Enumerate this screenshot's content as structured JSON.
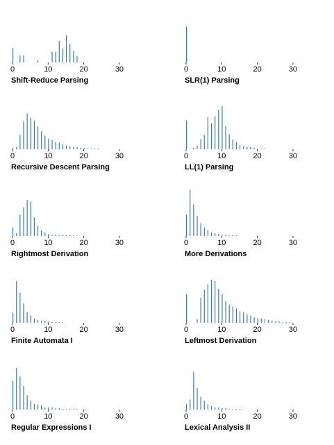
{
  "page": {
    "background": "#ffffff",
    "bar_color": "#3a7dae",
    "axis_color": "#000000"
  },
  "chart_data": [
    {
      "type": "bar",
      "title": "Shift-Reduce Parsing",
      "xlim": [
        0,
        38
      ],
      "ymax": 58,
      "xticks": [
        "0",
        "10",
        "20",
        "30"
      ],
      "values": [
        20,
        0,
        10,
        10,
        0,
        0,
        0,
        3,
        0,
        0,
        0,
        15,
        15,
        30,
        19,
        38,
        26,
        16,
        9,
        0,
        0,
        0,
        0,
        0,
        0,
        0,
        0,
        0,
        0,
        0,
        0,
        0,
        0,
        0,
        0,
        0,
        0
      ]
    },
    {
      "type": "bar",
      "title": "SLR(1) Parsing",
      "xlim": [
        0,
        38
      ],
      "ymax": 58,
      "xticks": [
        "0",
        "10",
        "20",
        "30"
      ],
      "values": [
        50,
        0,
        0,
        0,
        0,
        0,
        0,
        0,
        0,
        0,
        0,
        0,
        0,
        0,
        0,
        0,
        0,
        0,
        0,
        0,
        0,
        0,
        0,
        0,
        0,
        0,
        0,
        0,
        0,
        0,
        0,
        0,
        0,
        0,
        0,
        0,
        0
      ]
    },
    {
      "type": "bar",
      "title": "Recursive Descent Parsing",
      "xlim": [
        0,
        38
      ],
      "ymax": 58,
      "xticks": [
        "0",
        "10",
        "20",
        "30"
      ],
      "values": [
        2,
        3,
        20,
        39,
        50,
        44,
        40,
        32,
        25,
        19,
        15,
        13,
        10,
        9,
        7,
        5,
        4,
        3,
        3,
        2,
        2,
        1,
        1,
        1,
        1,
        0,
        0,
        0,
        0,
        0,
        0,
        0,
        0,
        0,
        0,
        0,
        0
      ]
    },
    {
      "type": "bar",
      "title": "LL(1) Parsing",
      "xlim": [
        0,
        38
      ],
      "ymax": 58,
      "xticks": [
        "0",
        "10",
        "20",
        "30"
      ],
      "values": [
        40,
        0,
        2,
        5,
        14,
        20,
        45,
        36,
        46,
        55,
        60,
        32,
        21,
        14,
        10,
        6,
        4,
        3,
        3,
        2,
        1,
        1,
        1,
        0,
        0,
        0,
        0,
        0,
        0,
        0,
        0,
        0,
        0,
        0,
        0,
        0,
        0
      ]
    },
    {
      "type": "bar",
      "title": "Rightmost Derivation",
      "xlim": [
        0,
        38
      ],
      "ymax": 58,
      "xticks": [
        "0",
        "10",
        "20",
        "30"
      ],
      "values": [
        12,
        4,
        30,
        40,
        50,
        48,
        26,
        14,
        8,
        5,
        3,
        2,
        2,
        1,
        1,
        1,
        1,
        1,
        1,
        0,
        0,
        0,
        0,
        0,
        0,
        0,
        0,
        0,
        0,
        0,
        0,
        0,
        0,
        0,
        0,
        0,
        0
      ]
    },
    {
      "type": "bar",
      "title": "More Derivations",
      "xlim": [
        0,
        38
      ],
      "ymax": 58,
      "xticks": [
        "0",
        "10",
        "20",
        "30"
      ],
      "values": [
        30,
        66,
        44,
        28,
        18,
        12,
        8,
        5,
        4,
        3,
        2,
        2,
        1,
        1,
        1,
        0,
        0,
        0,
        0,
        0,
        0,
        0,
        0,
        0,
        0,
        0,
        0,
        0,
        0,
        0,
        0,
        0,
        0,
        0,
        0,
        0,
        0
      ]
    },
    {
      "type": "bar",
      "title": "Finite Automata I",
      "xlim": [
        0,
        38
      ],
      "ymax": 58,
      "xticks": [
        "0",
        "10",
        "20",
        "30"
      ],
      "values": [
        14,
        58,
        42,
        27,
        15,
        10,
        6,
        4,
        3,
        2,
        2,
        1,
        1,
        1,
        1,
        0,
        0,
        0,
        0,
        0,
        0,
        0,
        0,
        0,
        0,
        0,
        0,
        0,
        0,
        0,
        0,
        0,
        0,
        0,
        0,
        0,
        0
      ]
    },
    {
      "type": "bar",
      "title": "Leftmost Derivation",
      "xlim": [
        0,
        38
      ],
      "ymax": 58,
      "xticks": [
        "0",
        "10",
        "20",
        "30"
      ],
      "values": [
        40,
        0,
        0,
        5,
        35,
        46,
        54,
        60,
        58,
        47,
        40,
        30,
        25,
        23,
        20,
        16,
        15,
        12,
        10,
        8,
        7,
        6,
        5,
        4,
        3,
        2,
        2,
        1,
        1,
        1,
        0,
        0,
        0,
        0,
        0,
        0,
        0
      ]
    },
    {
      "type": "bar",
      "title": "Regular Expressions I",
      "xlim": [
        0,
        38
      ],
      "ymax": 58,
      "xticks": [
        "0",
        "10",
        "20",
        "30"
      ],
      "values": [
        40,
        58,
        46,
        33,
        20,
        12,
        8,
        7,
        6,
        3,
        3,
        3,
        2,
        2,
        1,
        1,
        1,
        1,
        1,
        0,
        0,
        0,
        0,
        0,
        0,
        0,
        0,
        0,
        0,
        0,
        0,
        0,
        0,
        0,
        0,
        0,
        0
      ]
    },
    {
      "type": "bar",
      "title": "Lexical Analysis II",
      "xlim": [
        0,
        38
      ],
      "ymax": 58,
      "xticks": [
        "0",
        "10",
        "20",
        "30"
      ],
      "values": [
        8,
        14,
        52,
        30,
        18,
        12,
        7,
        5,
        3,
        3,
        2,
        2,
        1,
        1,
        1,
        1,
        0,
        0,
        0,
        0,
        0,
        0,
        0,
        0,
        0,
        0,
        0,
        0,
        0,
        0,
        0,
        0,
        0,
        0,
        0,
        0,
        0
      ]
    }
  ]
}
